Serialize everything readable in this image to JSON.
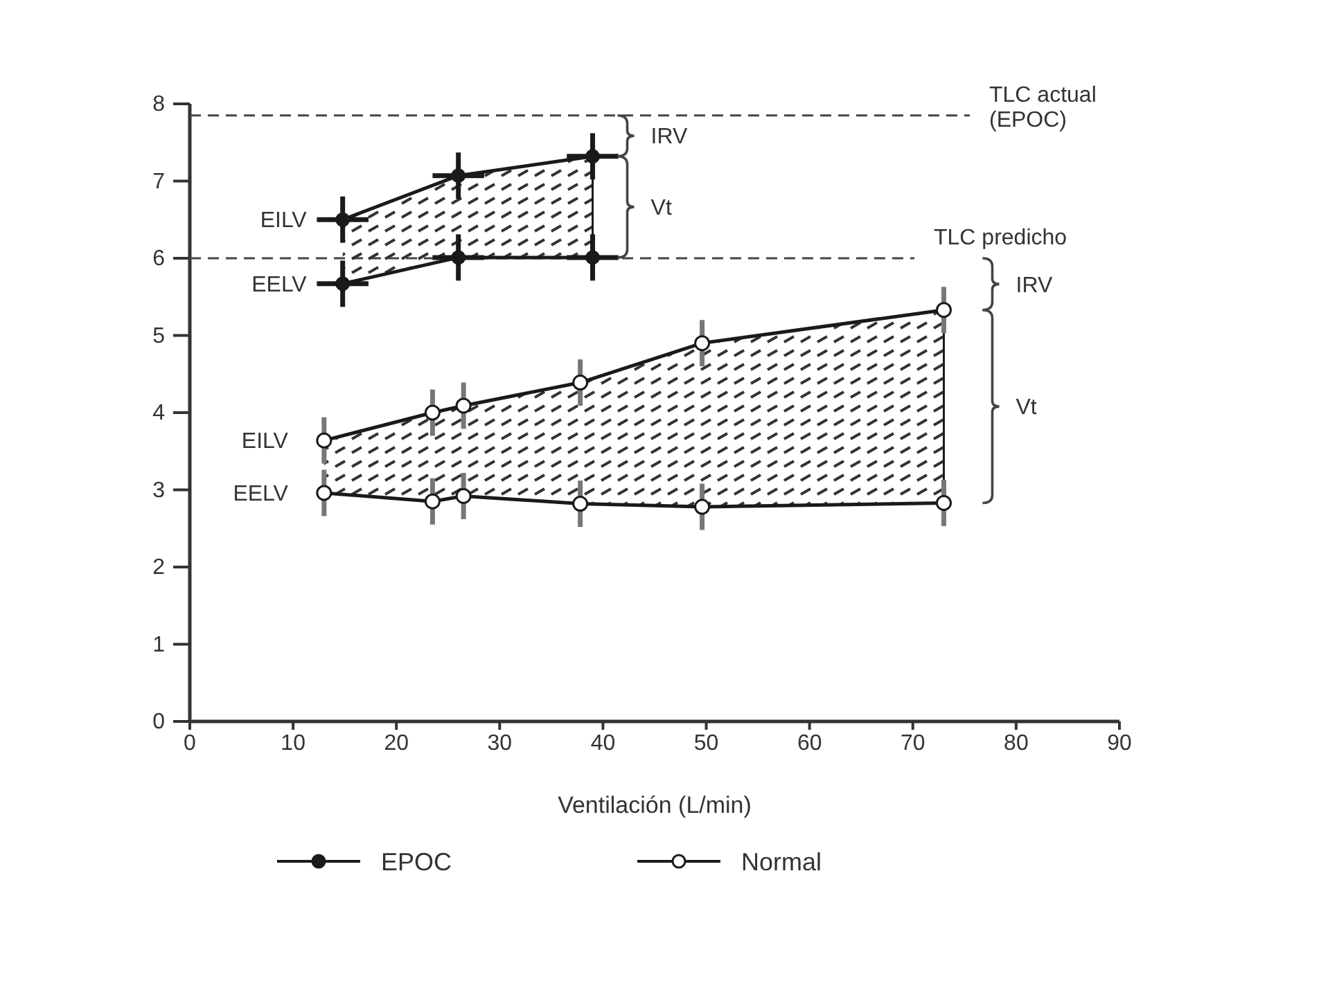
{
  "chart_data": {
    "type": "line",
    "xlabel": "Ventilación (L/min)",
    "xlim": [
      0,
      90
    ],
    "ylim": [
      0,
      8
    ],
    "xticks": [
      0,
      10,
      20,
      30,
      40,
      50,
      60,
      70,
      80,
      90
    ],
    "yticks": [
      0,
      1,
      2,
      3,
      4,
      5,
      6,
      7,
      8
    ],
    "grid": false,
    "legend": "bottom",
    "series": [
      {
        "name": "EPOC",
        "color": "#1a1a1a",
        "marker": "circle",
        "x": [
          14.8,
          26,
          39
        ],
        "values": [
          6.5,
          7.07,
          7.32
        ],
        "errors": [
          0.3,
          0.3,
          0.3
        ],
        "xerrors": [
          2.5,
          2.5,
          2.5
        ]
      },
      {
        "color": "#1a1a1a",
        "marker": "circle",
        "x": [
          14.8,
          26,
          39
        ],
        "values": [
          5.67,
          6.01,
          6.01
        ],
        "errors": [
          0.3,
          0.3,
          0.3
        ],
        "xerrors": [
          2.5,
          2.5,
          2.5
        ]
      },
      {
        "name": "Normal",
        "color": "#1a1a1a",
        "marker": "circle",
        "x": [
          13,
          23.5,
          26.5,
          37.8,
          49.6,
          73
        ],
        "values": [
          3.64,
          4.0,
          4.09,
          4.39,
          4.9,
          5.33
        ],
        "errors": [
          0.3,
          0.3,
          0.3,
          0.3,
          0.3,
          0.3
        ]
      },
      {
        "color": "#1a1a1a",
        "marker": "circle",
        "x": [
          13,
          23.5,
          26.5,
          37.8,
          49.6,
          73
        ],
        "values": [
          2.96,
          2.85,
          2.92,
          2.82,
          2.78,
          2.83
        ],
        "errors": [
          0.3,
          0.3,
          0.3,
          0.3,
          0.3,
          0.3
        ]
      }
    ],
    "ref_lines": [
      {
        "axis": "y",
        "value": 7.85,
        "label": "TLC actual (EPOC)",
        "line_style": "dashed"
      },
      {
        "axis": "y",
        "value": 6.0,
        "label": "TLC predicho",
        "line_style": "dashed"
      }
    ],
    "annotations": [
      "EILV",
      "EELV",
      "EILV",
      "EELV",
      "IRV",
      "Vt",
      "IRV",
      "Vt"
    ]
  }
}
